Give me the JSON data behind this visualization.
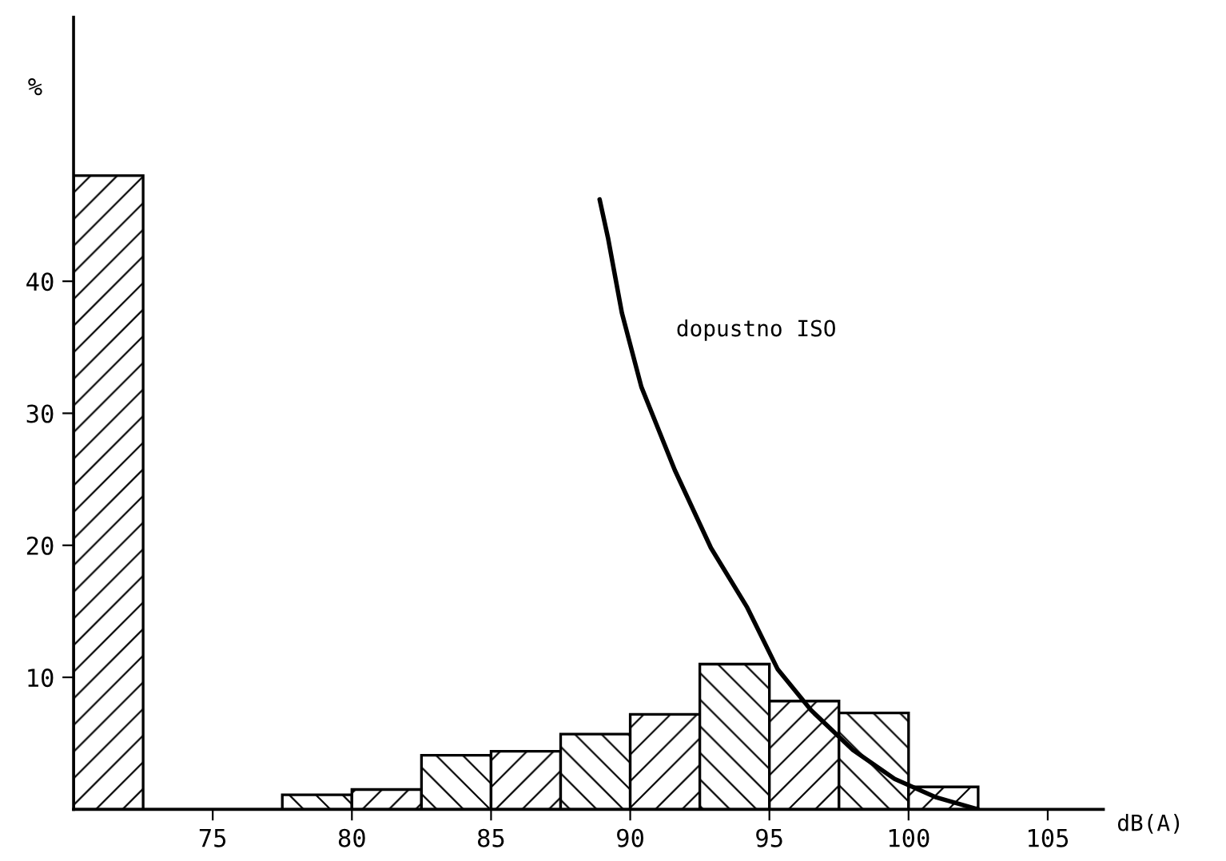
{
  "chart_data": {
    "type": "histogram",
    "bins": [
      70,
      72.5,
      75,
      77.5,
      80,
      82.5,
      85,
      87.5,
      90,
      92.5,
      95,
      97.5,
      100,
      102.5
    ],
    "values": [
      48,
      0,
      0,
      1.1,
      1.5,
      4.1,
      4.4,
      5.7,
      7.2,
      11,
      8.2,
      7.3,
      1.7
    ],
    "color": "#000000",
    "series": [
      {
        "type": "line",
        "color": "#000000",
        "x": [
          88.9,
          89.2,
          89.7,
          90.4,
          91.6,
          92.9,
          94.2,
          95.3,
          96.5,
          98,
          99.5,
          101,
          102.5
        ],
        "values": [
          46.2,
          43.3,
          37.6,
          32,
          25.7,
          19.8,
          15.3,
          10.6,
          7.5,
          4.5,
          2.3,
          0.9,
          0
        ]
      }
    ],
    "xlabel": "dB(A)",
    "ylabel": "%",
    "annotations": [
      "dopustno ISO"
    ],
    "xlim": [
      70,
      107
    ],
    "ylim": [
      0,
      60
    ],
    "xticks": [
      75,
      80,
      85,
      90,
      95,
      100,
      105
    ],
    "yticks": [
      10,
      20,
      30,
      40
    ],
    "grid": false,
    "legend": false
  }
}
